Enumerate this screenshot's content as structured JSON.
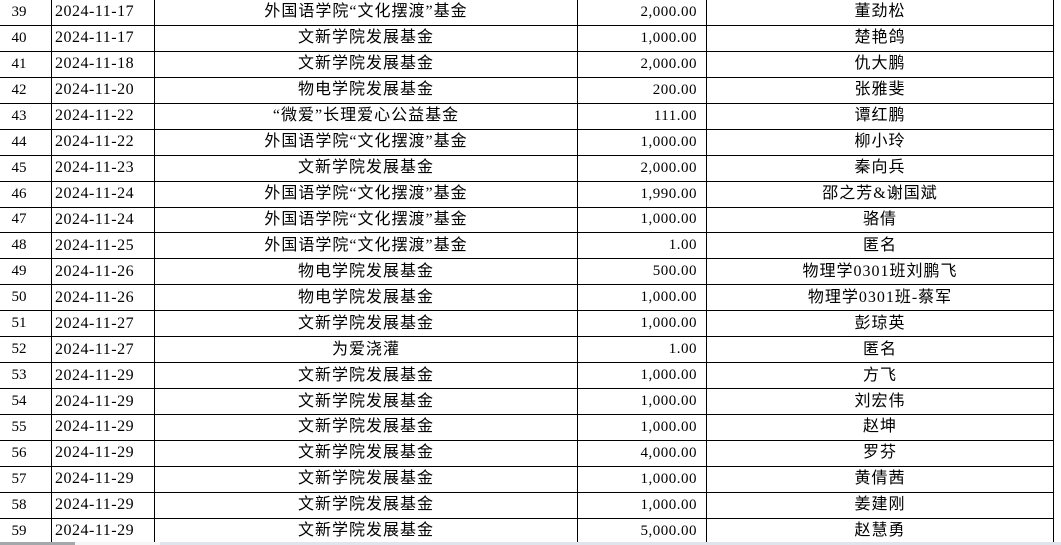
{
  "table": {
    "columns": [
      "row_number",
      "date",
      "fund_name",
      "amount",
      "donor_name"
    ],
    "rows": [
      {
        "no": "39",
        "date": "2024-11-17",
        "fund": "外国语学院“文化摆渡”基金",
        "amount": "2,000.00",
        "donor": "董劲松"
      },
      {
        "no": "40",
        "date": "2024-11-17",
        "fund": "文新学院发展基金",
        "amount": "1,000.00",
        "donor": "楚艳鸽"
      },
      {
        "no": "41",
        "date": "2024-11-18",
        "fund": "文新学院发展基金",
        "amount": "2,000.00",
        "donor": "仇大鹏"
      },
      {
        "no": "42",
        "date": "2024-11-20",
        "fund": "物电学院发展基金",
        "amount": "200.00",
        "donor": "张雅斐"
      },
      {
        "no": "43",
        "date": "2024-11-22",
        "fund": "“微爱”长理爱心公益基金",
        "amount": "111.00",
        "donor": "谭红鹏"
      },
      {
        "no": "44",
        "date": "2024-11-22",
        "fund": "外国语学院“文化摆渡”基金",
        "amount": "1,000.00",
        "donor": "柳小玲"
      },
      {
        "no": "45",
        "date": "2024-11-23",
        "fund": "文新学院发展基金",
        "amount": "2,000.00",
        "donor": "秦向兵"
      },
      {
        "no": "46",
        "date": "2024-11-24",
        "fund": "外国语学院“文化摆渡”基金",
        "amount": "1,990.00",
        "donor": "邵之芳&谢国斌"
      },
      {
        "no": "47",
        "date": "2024-11-24",
        "fund": "外国语学院“文化摆渡”基金",
        "amount": "1,000.00",
        "donor": "骆倩"
      },
      {
        "no": "48",
        "date": "2024-11-25",
        "fund": "外国语学院“文化摆渡”基金",
        "amount": "1.00",
        "donor": "匿名"
      },
      {
        "no": "49",
        "date": "2024-11-26",
        "fund": "物电学院发展基金",
        "amount": "500.00",
        "donor": "物理学0301班刘鹏飞"
      },
      {
        "no": "50",
        "date": "2024-11-26",
        "fund": "物电学院发展基金",
        "amount": "1,000.00",
        "donor": "物理学0301班-蔡军"
      },
      {
        "no": "51",
        "date": "2024-11-27",
        "fund": "文新学院发展基金",
        "amount": "1,000.00",
        "donor": "彭琼英"
      },
      {
        "no": "52",
        "date": "2024-11-27",
        "fund": "为爱浇灌",
        "amount": "1.00",
        "donor": "匿名"
      },
      {
        "no": "53",
        "date": "2024-11-29",
        "fund": "文新学院发展基金",
        "amount": "1,000.00",
        "donor": "方飞"
      },
      {
        "no": "54",
        "date": "2024-11-29",
        "fund": "文新学院发展基金",
        "amount": "1,000.00",
        "donor": "刘宏伟"
      },
      {
        "no": "55",
        "date": "2024-11-29",
        "fund": "文新学院发展基金",
        "amount": "1,000.00",
        "donor": "赵坤"
      },
      {
        "no": "56",
        "date": "2024-11-29",
        "fund": "文新学院发展基金",
        "amount": "4,000.00",
        "donor": "罗芬"
      },
      {
        "no": "57",
        "date": "2024-11-29",
        "fund": "文新学院发展基金",
        "amount": "1,000.00",
        "donor": "黄倩茜"
      },
      {
        "no": "58",
        "date": "2024-11-29",
        "fund": "文新学院发展基金",
        "amount": "1,000.00",
        "donor": "姜建刚"
      },
      {
        "no": "59",
        "date": "2024-11-29",
        "fund": "文新学院发展基金",
        "amount": "5,000.00",
        "donor": "赵慧勇"
      }
    ]
  },
  "colors": {
    "background": "#ffffff",
    "grid_border": "#000000",
    "text": "#000000",
    "bottom_strip_dark": "#a4a8ab",
    "bottom_strip_light": "#dfe5ea"
  }
}
